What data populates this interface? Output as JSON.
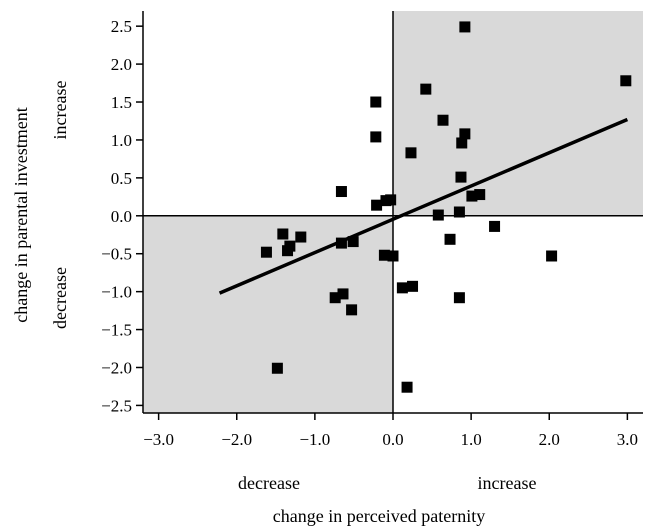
{
  "chart_data": {
    "type": "scatter",
    "xlabel": "change in perceived paternity",
    "ylabel": "change in parental investment",
    "x_direction_labels": {
      "negative": "decrease",
      "positive": "increase"
    },
    "y_direction_labels": {
      "negative": "decrease",
      "positive": "increase"
    },
    "xlim": [
      -3.2,
      3.2
    ],
    "ylim": [
      -2.6,
      2.7
    ],
    "xticks": [
      -3.0,
      -2.0,
      -1.0,
      0.0,
      1.0,
      2.0,
      3.0
    ],
    "xtick_labels": [
      "−3.0",
      "−2.0",
      "−1.0",
      "0.0",
      "1.0",
      "2.0",
      "3.0"
    ],
    "yticks": [
      2.5,
      2.0,
      1.5,
      1.0,
      0.5,
      0.0,
      -0.5,
      -1.0,
      -1.5,
      -2.0,
      -2.5
    ],
    "ytick_labels": [
      "2.5",
      "2.0",
      "1.5",
      "1.0",
      "0.5",
      "0.0",
      "−0.5",
      "−1.0",
      "−1.5",
      "−2.0",
      "−2.5"
    ],
    "shaded_quadrants": [
      "top-right",
      "bottom-left"
    ],
    "shade_color": "#d9d9d9",
    "marker": "square",
    "marker_color": "#000000",
    "points": [
      {
        "x": 0.92,
        "y": 2.49
      },
      {
        "x": 2.98,
        "y": 1.78
      },
      {
        "x": 0.42,
        "y": 1.67
      },
      {
        "x": -0.22,
        "y": 1.5
      },
      {
        "x": 0.64,
        "y": 1.26
      },
      {
        "x": 0.92,
        "y": 1.08
      },
      {
        "x": -0.22,
        "y": 1.04
      },
      {
        "x": 0.88,
        "y": 0.96
      },
      {
        "x": 0.23,
        "y": 0.83
      },
      {
        "x": 0.87,
        "y": 0.51
      },
      {
        "x": -0.66,
        "y": 0.32
      },
      {
        "x": 1.11,
        "y": 0.28
      },
      {
        "x": 1.01,
        "y": 0.26
      },
      {
        "x": -0.03,
        "y": 0.21
      },
      {
        "x": -0.09,
        "y": 0.2
      },
      {
        "x": -0.21,
        "y": 0.14
      },
      {
        "x": 0.85,
        "y": 0.05
      },
      {
        "x": 0.58,
        "y": 0.01
      },
      {
        "x": 1.3,
        "y": -0.14
      },
      {
        "x": -1.41,
        "y": -0.24
      },
      {
        "x": -1.18,
        "y": -0.28
      },
      {
        "x": 0.73,
        "y": -0.31
      },
      {
        "x": -0.51,
        "y": -0.34
      },
      {
        "x": -0.66,
        "y": -0.36
      },
      {
        "x": -1.32,
        "y": -0.4
      },
      {
        "x": -1.35,
        "y": -0.46
      },
      {
        "x": -1.62,
        "y": -0.48
      },
      {
        "x": -0.11,
        "y": -0.52
      },
      {
        "x": 0.0,
        "y": -0.53
      },
      {
        "x": 2.03,
        "y": -0.53
      },
      {
        "x": 0.25,
        "y": -0.93
      },
      {
        "x": 0.12,
        "y": -0.95
      },
      {
        "x": -0.64,
        "y": -1.03
      },
      {
        "x": -0.74,
        "y": -1.08
      },
      {
        "x": 0.85,
        "y": -1.08
      },
      {
        "x": -0.53,
        "y": -1.24
      },
      {
        "x": -1.48,
        "y": -2.01
      },
      {
        "x": 0.18,
        "y": -2.26
      }
    ],
    "fit_line": {
      "x": [
        -2.22,
        3.0
      ],
      "y": [
        -1.02,
        1.27
      ]
    }
  }
}
